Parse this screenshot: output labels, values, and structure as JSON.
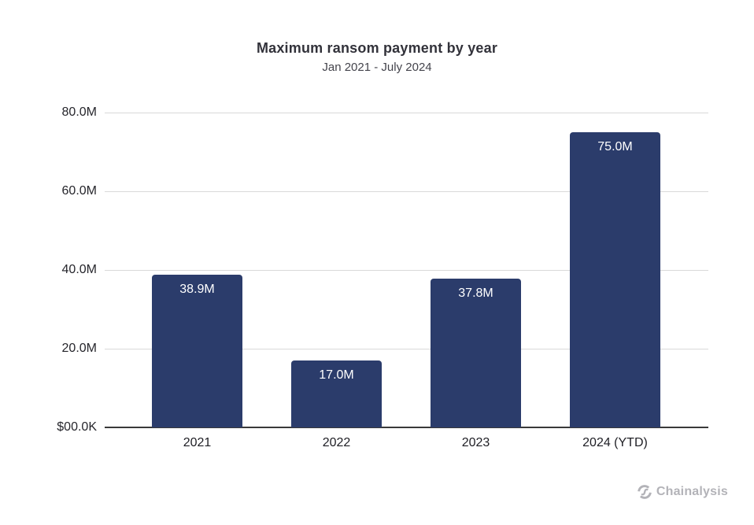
{
  "chart_data": {
    "type": "bar",
    "title": "Maximum ransom payment by year",
    "subtitle": "Jan 2021 - July 2024",
    "categories": [
      "2021",
      "2022",
      "2023",
      "2024 (YTD)"
    ],
    "values": [
      38.9,
      17.0,
      37.8,
      75.0
    ],
    "bar_labels": [
      "38.9M",
      "17.0M",
      "37.8M",
      "75.0M"
    ],
    "ylim": [
      0,
      80
    ],
    "yticks": [
      0,
      20,
      40,
      60,
      80
    ],
    "ytick_labels": [
      "$00.0K",
      "20.0M",
      "40.0M",
      "60.0M",
      "80.0M"
    ],
    "grid": true,
    "legend": "none",
    "colors": {
      "bar": "#2b3c6b",
      "bar_label": "#ffffff",
      "gridline": "#d9d9d9",
      "axis_line": "#3a3a3a",
      "title": "#32323a",
      "subtitle": "#44444c",
      "tick_label": "#26262c"
    }
  },
  "branding": {
    "logo_text": "Chainalysis",
    "logo_icon": "chainalysis-mark-icon",
    "logo_color": "#b3b3b8"
  }
}
